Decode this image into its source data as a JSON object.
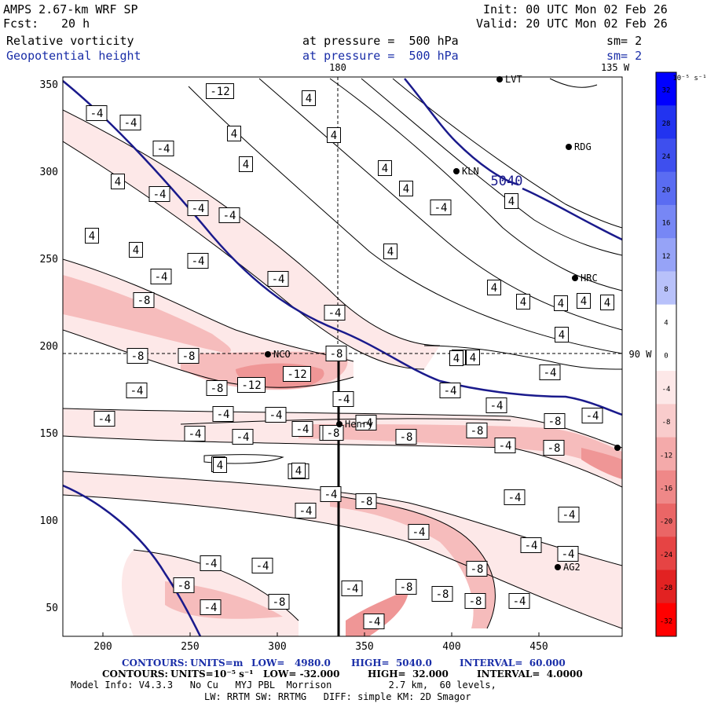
{
  "header": {
    "model": "AMPS 2.67-km WRF SP",
    "fcst_label": "Fcst:",
    "fcst_value": "20 h",
    "init": "Init: 00 UTC Mon 02 Feb 26",
    "valid": "Valid: 20 UTC Mon 02 Feb 26",
    "field1": "Relative vorticity",
    "field2": "Geopotential height",
    "level1": "at pressure =  500 hPa",
    "level2": "at pressure =  500 hPa",
    "sm1": "sm= 2",
    "sm2": "sm= 2"
  },
  "map": {
    "lon_180": "180",
    "lon_135w": "135 W",
    "lat_90w": "90 W",
    "x_ticks": [
      "200",
      "250",
      "300",
      "350",
      "400",
      "450"
    ],
    "y_ticks": [
      "350",
      "300",
      "250",
      "200",
      "150",
      "100",
      "50"
    ],
    "height_label": "5040",
    "stations": [
      {
        "id": "LVT",
        "label": "LVT"
      },
      {
        "id": "RDG",
        "label": "RDG"
      },
      {
        "id": "KLN",
        "label": "KLN"
      },
      {
        "id": "HRC",
        "label": "HRC"
      },
      {
        "id": "NCO",
        "label": "NCO"
      },
      {
        "id": "Henry",
        "label": "Henry"
      },
      {
        "id": "AG2",
        "label": "AG2"
      }
    ],
    "contour_labels": [
      "4",
      "4",
      "-4",
      "-4",
      "4",
      "4",
      "-4",
      "4",
      "4",
      "4",
      "4",
      "4",
      "-4",
      "-4",
      "-4",
      "-4",
      "4",
      "4",
      "4",
      "-4",
      "-4",
      "4",
      "-4",
      "4",
      "4",
      "4",
      "4",
      "-4",
      "-8",
      "4",
      "4",
      "4",
      "-4",
      "4",
      "-8",
      "-8",
      "-8",
      "-4",
      "-12",
      "-12",
      "-8",
      "-4",
      "-4",
      "-4",
      "-4",
      "-4",
      "-4",
      "-4",
      "-4",
      "-4",
      "-4",
      "-4",
      "-4",
      "-8",
      "-8",
      "-8",
      "4",
      "-8",
      "-8",
      "-4",
      "-4",
      "-8",
      "4",
      "4",
      "-4",
      "-8",
      "-4",
      "-4",
      "-4",
      "-4",
      "-4",
      "-4",
      "-4",
      "-4",
      "-8",
      "-8",
      "-8",
      "-4",
      "-4",
      "-8",
      "-8",
      "-8",
      "-4",
      "-4",
      "-12"
    ]
  },
  "colorbar": {
    "unit_label": "10⁻⁵ s⁻¹",
    "ticks": [
      "32",
      "28",
      "24",
      "20",
      "16",
      "12",
      "8",
      "4",
      "0",
      "-4",
      "-8",
      "-12",
      "-16",
      "-20",
      "-24",
      "-28",
      "-32"
    ],
    "colors": [
      "#0000ff",
      "#2233f0",
      "#3e4fee",
      "#5a6cf2",
      "#7787f5",
      "#96a3f7",
      "#b8c1fa",
      "#ffffff",
      "#ffffff",
      "#fde8e8",
      "#f9cccc",
      "#f4aaaa",
      "#ef8888",
      "#ea6666",
      "#e64444",
      "#e22222",
      "#ff0000"
    ]
  },
  "footer": {
    "line1_contours": "CONTOURS:",
    "line1_units": "UNITS=m",
    "line1_low": "LOW=   4980.0",
    "line1_high": "HIGH=  5040.0",
    "line1_interval": "INTERVAL=  60.000",
    "line2_contours": "CONTOURS:",
    "line2_units": "UNITS=10⁻⁵ s⁻¹",
    "line2_low": "LOW= -32.000",
    "line2_high": "HIGH=  32.000",
    "line2_interval": "INTERVAL=  4.0000",
    "line3": "Model Info: V4.3.3   No Cu   MYJ PBL  Morrison          2.7 km,  60 levels,",
    "line4": "LW: RRTM SW: RRTMG   DIFF: simple KM: 2D Smagor"
  },
  "colors": {
    "height_contour": "#1a1a8c",
    "vort_contour": "#000000",
    "neg_fill_light": "#fde8e8",
    "neg_fill_mid": "#f6bcbc",
    "neg_fill_dark": "#ef9696"
  }
}
